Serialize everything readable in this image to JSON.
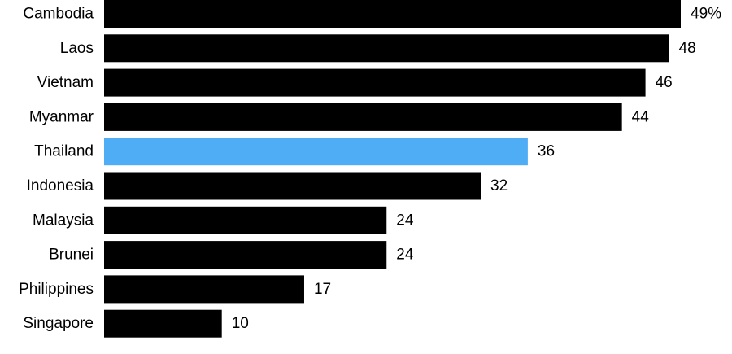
{
  "chart_data": {
    "type": "bar",
    "orientation": "horizontal",
    "categories": [
      "Cambodia",
      "Laos",
      "Vietnam",
      "Myanmar",
      "Thailand",
      "Indonesia",
      "Malaysia",
      "Brunei",
      "Philippines",
      "Singapore"
    ],
    "values": [
      49,
      48,
      46,
      44,
      36,
      32,
      24,
      24,
      17,
      10
    ],
    "value_labels": [
      "49%",
      "48",
      "46",
      "44",
      "36",
      "32",
      "24",
      "24",
      "17",
      "10"
    ],
    "highlight_category": "Thailand",
    "colors": {
      "default": "#000000",
      "highlight": "#4fadf5"
    },
    "xlim": [
      0,
      49
    ],
    "grid": false,
    "legend": "none"
  }
}
